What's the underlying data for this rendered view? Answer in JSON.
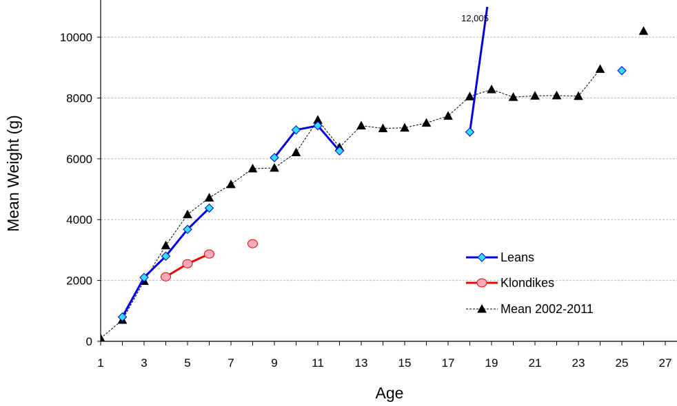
{
  "chart_data": {
    "type": "line",
    "title": "",
    "xlabel": "Age",
    "ylabel": "Mean Weight (g)",
    "xlim": [
      1,
      28
    ],
    "ylim": [
      0,
      11000
    ],
    "x_ticks": [
      1,
      3,
      5,
      7,
      9,
      11,
      13,
      15,
      17,
      19,
      21,
      23,
      25,
      27
    ],
    "y_ticks": [
      0,
      2000,
      4000,
      6000,
      8000,
      10000
    ],
    "x_tick_labels": [
      "1",
      "3",
      "5",
      "7",
      "9",
      "11",
      "13",
      "15",
      "17",
      "19",
      "21",
      "23",
      "25",
      "27"
    ],
    "y_tick_labels": [
      "0",
      "2000",
      "4000",
      "6000",
      "8000",
      "10000"
    ],
    "grid": "horizontal dashed",
    "legend_position": "center-right",
    "series": [
      {
        "name": "Leans",
        "color": "#0000dd",
        "marker": "diamond",
        "marker_fill": "#33ddff",
        "line_style": "solid",
        "segments": [
          [
            [
              2,
              800
            ],
            [
              3,
              2100
            ],
            [
              4,
              2800
            ],
            [
              5,
              3680
            ],
            [
              6,
              4380
            ]
          ],
          [
            [
              9,
              6040
            ],
            [
              10,
              6950
            ],
            [
              11,
              7090
            ],
            [
              12,
              6260
            ]
          ],
          [
            [
              18,
              6880
            ],
            [
              19,
              12005
            ]
          ],
          [
            [
              25,
              8900
            ]
          ]
        ]
      },
      {
        "name": "Klondikes",
        "color": "#ee0000",
        "marker": "circle",
        "marker_fill": "#ffaabb",
        "line_style": "solid",
        "segments": [
          [
            [
              4,
              2120
            ],
            [
              5,
              2550
            ],
            [
              6,
              2870
            ]
          ],
          [
            [
              8,
              3210
            ]
          ]
        ]
      },
      {
        "name": "Mean 2002-2011",
        "color": "#000000",
        "marker": "triangle",
        "marker_fill": "#000000",
        "line_style": "dashed",
        "segments": [
          [
            [
              1,
              100
            ],
            [
              2,
              700
            ],
            [
              3,
              1980
            ],
            [
              4,
              3150
            ],
            [
              5,
              4170
            ],
            [
              6,
              4720
            ],
            [
              7,
              5160
            ],
            [
              8,
              5680
            ],
            [
              9,
              5700
            ],
            [
              10,
              6210
            ],
            [
              11,
              7280
            ],
            [
              12,
              6380
            ],
            [
              13,
              7090
            ],
            [
              14,
              7000
            ],
            [
              15,
              7020
            ],
            [
              16,
              7180
            ],
            [
              17,
              7410
            ],
            [
              18,
              8050
            ],
            [
              19,
              8280
            ],
            [
              20,
              8030
            ],
            [
              21,
              8070
            ],
            [
              22,
              8080
            ],
            [
              23,
              8060
            ],
            [
              24,
              8950
            ]
          ],
          [
            [
              26,
              10200
            ]
          ]
        ]
      }
    ],
    "annotations": [
      {
        "text": "12,005",
        "x": 19,
        "y": 12005
      }
    ]
  }
}
